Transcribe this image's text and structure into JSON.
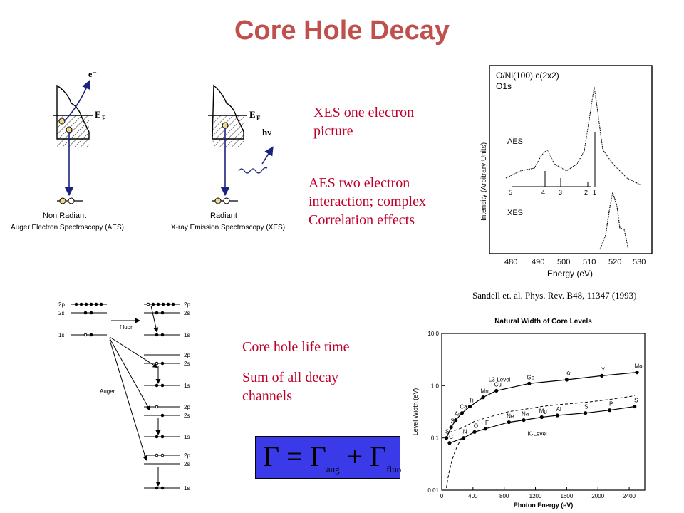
{
  "slide": {
    "title": "Core Hole Decay",
    "notes": {
      "xes_line1": "XES one electron",
      "xes_line2": "picture",
      "aes_line1": "AES two electron",
      "aes_line2": "interaction; complex",
      "aes_line3": "Correlation effects",
      "lifetime": "Core hole life time",
      "sum_line1": "Sum of all decay",
      "sum_line2": "channels"
    },
    "citation": "Sandell et. al. Phys. Rev. B48, 11347 (1993)",
    "colors": {
      "title": "#c0504d",
      "note": "#c0002a",
      "arrow": "#1a237e",
      "formula_bg": "#3a3ae8"
    }
  },
  "left_diagrams": {
    "electron_label": "e⁻",
    "ef_label": "E",
    "ef_sub": "F",
    "photon_label": "hν",
    "non_radiant": {
      "name": "Non Radiant",
      "caption": "Auger Electron Spectroscopy (AES)"
    },
    "radiant": {
      "name": "Radiant",
      "caption": "X-ray Emission Spectroscopy (XES)"
    }
  },
  "level_diagram": {
    "levels": [
      "2p",
      "2s",
      "1s"
    ],
    "fluor_label": "f luor.",
    "auger_label": "Auger"
  },
  "formula": {
    "gamma": "Γ",
    "equals": "=",
    "plus": "+",
    "sub_aug": "aug",
    "sub_fluo": "fluo"
  },
  "spectrum": {
    "title_line1": "O/Ni(100) c(2x2)",
    "title_line2": "O1s",
    "aes_label": "AES",
    "xes_label": "XES",
    "ylabel": "Intensity (Arbitrary Units)",
    "xlabel": "Energy (eV)",
    "xticks": [
      "480",
      "490",
      "500",
      "510",
      "520",
      "530"
    ],
    "markers": [
      "5",
      "4",
      "3",
      "2",
      "1"
    ]
  },
  "chart_data": {
    "type": "scatter",
    "title": "Natural Width of Core Levels",
    "xlabel": "Photon Energy (eV)",
    "ylabel": "Level Width (eV)",
    "xlim": [
      0,
      2600
    ],
    "ylim": [
      0.01,
      10
    ],
    "yscale": "log",
    "xticks": [
      0,
      400,
      800,
      1200,
      1600,
      2000,
      2400
    ],
    "ytick_labels": [
      "10.0",
      "1.0",
      "0.1",
      "0.01"
    ],
    "series": [
      {
        "name": "L3-Level",
        "points": [
          {
            "x": 60,
            "y": 0.1,
            "label": "Si"
          },
          {
            "x": 120,
            "y": 0.16,
            "label": "S"
          },
          {
            "x": 180,
            "y": 0.22,
            "label": "Ar"
          },
          {
            "x": 260,
            "y": 0.3,
            "label": "Ca"
          },
          {
            "x": 360,
            "y": 0.4,
            "label": "Ti"
          },
          {
            "x": 530,
            "y": 0.6,
            "label": "Mn"
          },
          {
            "x": 700,
            "y": 0.8,
            "label": "Cu"
          },
          {
            "x": 1120,
            "y": 1.1,
            "label": "Ge"
          },
          {
            "x": 1600,
            "y": 1.3,
            "label": "Kr"
          },
          {
            "x": 2050,
            "y": 1.55,
            "label": "Y"
          },
          {
            "x": 2500,
            "y": 1.8,
            "label": "Mo"
          }
        ]
      },
      {
        "name": "K-Level",
        "points": [
          {
            "x": 100,
            "y": 0.08,
            "label": "C"
          },
          {
            "x": 280,
            "y": 0.1,
            "label": "N"
          },
          {
            "x": 420,
            "y": 0.13,
            "label": "O"
          },
          {
            "x": 560,
            "y": 0.15,
            "label": "F"
          },
          {
            "x": 860,
            "y": 0.2,
            "label": "Ne"
          },
          {
            "x": 1050,
            "y": 0.22,
            "label": "Na"
          },
          {
            "x": 1280,
            "y": 0.25,
            "label": "Mg"
          },
          {
            "x": 1480,
            "y": 0.27,
            "label": "Al"
          },
          {
            "x": 1840,
            "y": 0.3,
            "label": "Si"
          },
          {
            "x": 2150,
            "y": 0.34,
            "label": "P"
          },
          {
            "x": 2470,
            "y": 0.4,
            "label": "S"
          }
        ]
      }
    ],
    "annotations": [
      "L3-Level",
      "K-Level"
    ]
  }
}
